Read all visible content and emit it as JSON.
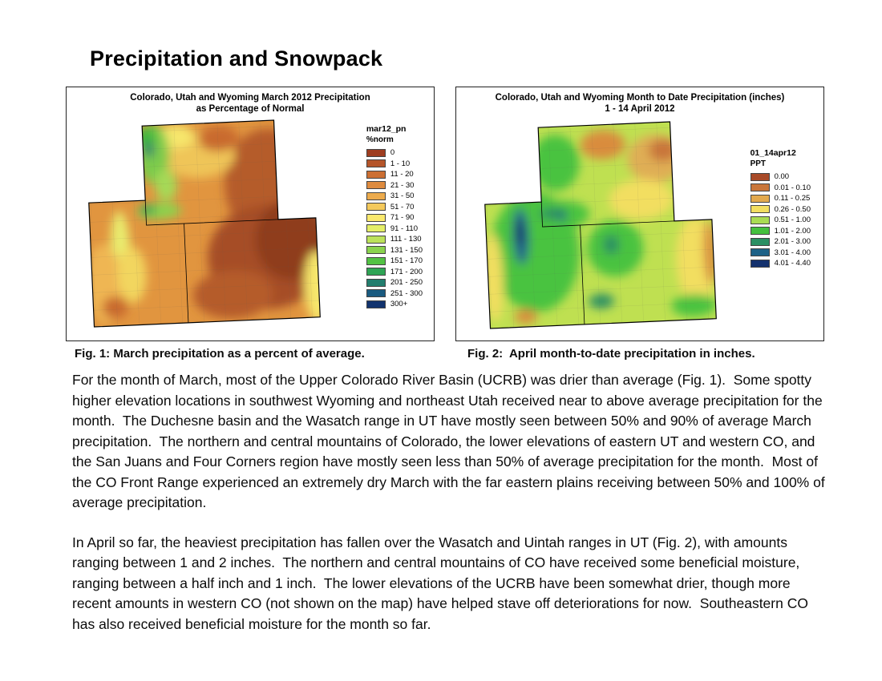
{
  "page": {
    "title": "Precipitation and Snowpack"
  },
  "fig1": {
    "map_title_line1": "Colorado, Utah and Wyoming March 2012 Precipitation",
    "map_title_line2": "as Percentage of Normal",
    "legend_title": "mar12_pn",
    "legend_subtitle": "%norm",
    "legend_items": [
      {
        "label": "0",
        "color": "#9E3D20"
      },
      {
        "label": "1 - 10",
        "color": "#B5552A"
      },
      {
        "label": "11 - 20",
        "color": "#CC6F33"
      },
      {
        "label": "21 - 30",
        "color": "#DE8B3F"
      },
      {
        "label": "31 - 50",
        "color": "#ECAB4D"
      },
      {
        "label": "51 - 70",
        "color": "#F4C95C"
      },
      {
        "label": "71 - 90",
        "color": "#FAE96E"
      },
      {
        "label": "91 - 110",
        "color": "#E4EE67"
      },
      {
        "label": "111 - 130",
        "color": "#BCE25B"
      },
      {
        "label": "131 - 150",
        "color": "#8AD34E"
      },
      {
        "label": "151 - 170",
        "color": "#52C244"
      },
      {
        "label": "171 - 200",
        "color": "#2FA455"
      },
      {
        "label": "201 - 250",
        "color": "#237E6E"
      },
      {
        "label": "251 - 300",
        "color": "#1A5B80"
      },
      {
        "label": "300+",
        "color": "#12336E"
      }
    ],
    "caption": "Fig. 1: March precipitation as a percent of average."
  },
  "fig2": {
    "map_title_line1": "Colorado, Utah and Wyoming Month to Date Precipitation (inches)",
    "map_title_line2": "1 - 14 April 2012",
    "legend_title": "01_14apr12",
    "legend_subtitle": "PPT",
    "legend_items": [
      {
        "label": "0.00",
        "color": "#A84A28"
      },
      {
        "label": "0.01 - 0.10",
        "color": "#C9763A"
      },
      {
        "label": "0.11 - 0.25",
        "color": "#E2A94E"
      },
      {
        "label": "0.26 - 0.50",
        "color": "#F2DE61"
      },
      {
        "label": "0.51 - 1.00",
        "color": "#A9DC53"
      },
      {
        "label": "1.01 - 2.00",
        "color": "#44C03E"
      },
      {
        "label": "2.01 - 3.00",
        "color": "#2B8F63"
      },
      {
        "label": "3.01 - 4.00",
        "color": "#1E6287"
      },
      {
        "label": "4.01 - 4.40",
        "color": "#13316D"
      }
    ],
    "caption": "Fig. 2:  April month-to-date precipitation in inches."
  },
  "body": {
    "paragraph1": "For the month of March, most of the Upper Colorado River Basin (UCRB) was drier than average (Fig. 1).  Some spotty higher elevation locations in southwest Wyoming and northeast Utah received near to above average precipitation for the month.  The Duchesne basin and the Wasatch range in UT have mostly seen between 50% and 90% of average March precipitation.  The northern and central mountains of Colorado, the lower elevations of eastern UT and western CO, and the San Juans and Four Corners region have mostly seen less than 50% of average precipitation for the month.  Most of the CO Front Range experienced an extremely dry March with the far eastern plains receiving between 50% and 100% of average precipitation.",
    "paragraph2": "In April so far, the heaviest precipitation has fallen over the Wasatch and Uintah ranges in UT (Fig. 2), with amounts ranging between 1 and 2 inches.  The northern and central mountains of CO have received some beneficial moisture, ranging between a half inch and 1 inch.  The lower elevations of the UCRB have been somewhat drier, though more recent amounts in western CO (not shown on the map) have helped stave off deteriorations for now.  Southeastern CO has also received beneficial moisture for the month so far."
  }
}
